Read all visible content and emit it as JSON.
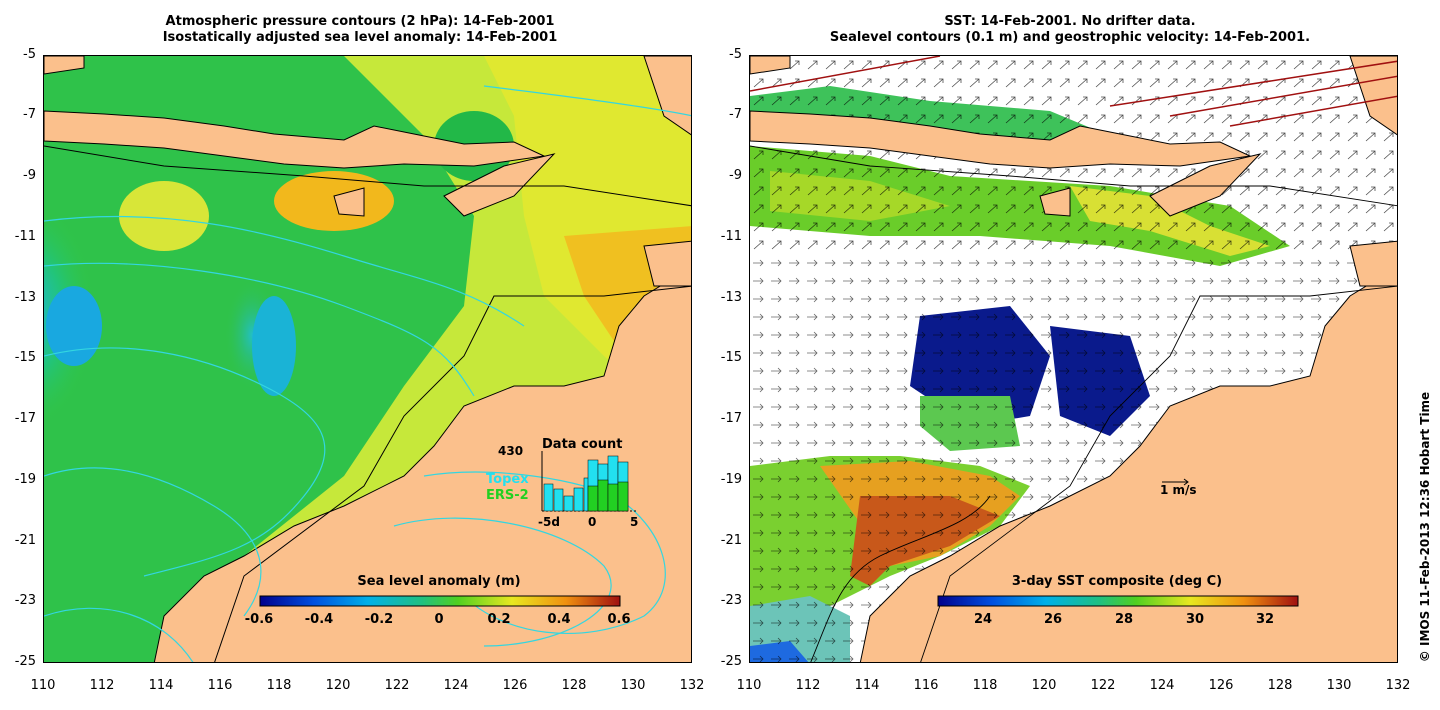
{
  "left": {
    "title_line1": "Atmospheric pressure contours (2 hPa): 14-Feb-2001",
    "title_line2": "Isostatically adjusted sea level anomaly: 14-Feb-2001",
    "colorbar_title": "Sea level anomaly (m)",
    "colorbar_ticks": [
      "-0.6",
      "-0.4",
      "-0.2",
      "0",
      "0.2",
      "0.4",
      "0.6"
    ],
    "inset": {
      "title": "Data count",
      "max_label": "430",
      "series1": "Topex",
      "series2": "ERS-2",
      "x_labels": [
        "-5d",
        "0",
        "5"
      ]
    }
  },
  "right": {
    "title_line1": "SST: 14-Feb-2001. No drifter data.",
    "title_line2": "Sealevel contours (0.1 m) and geostrophic velocity: 14-Feb-2001.",
    "colorbar_title": "3-day SST composite (deg C)",
    "colorbar_ticks": [
      "24",
      "26",
      "28",
      "30",
      "32"
    ],
    "velocity_scale": "1 m/s"
  },
  "axes": {
    "y_ticks": [
      "-5",
      "-7",
      "-9",
      "-11",
      "-13",
      "-15",
      "-17",
      "-19",
      "-21",
      "-23",
      "-25"
    ],
    "x_ticks": [
      "110",
      "112",
      "114",
      "116",
      "118",
      "120",
      "122",
      "124",
      "126",
      "128",
      "130",
      "132"
    ]
  },
  "copyright": "© IMOS 11-Feb-2013 12:36 Hobart Time",
  "colors": {
    "land": "#fbc08c",
    "contour_cyan": "#33d6e0",
    "topex": "#22e0f0",
    "ers2": "#22d022"
  }
}
